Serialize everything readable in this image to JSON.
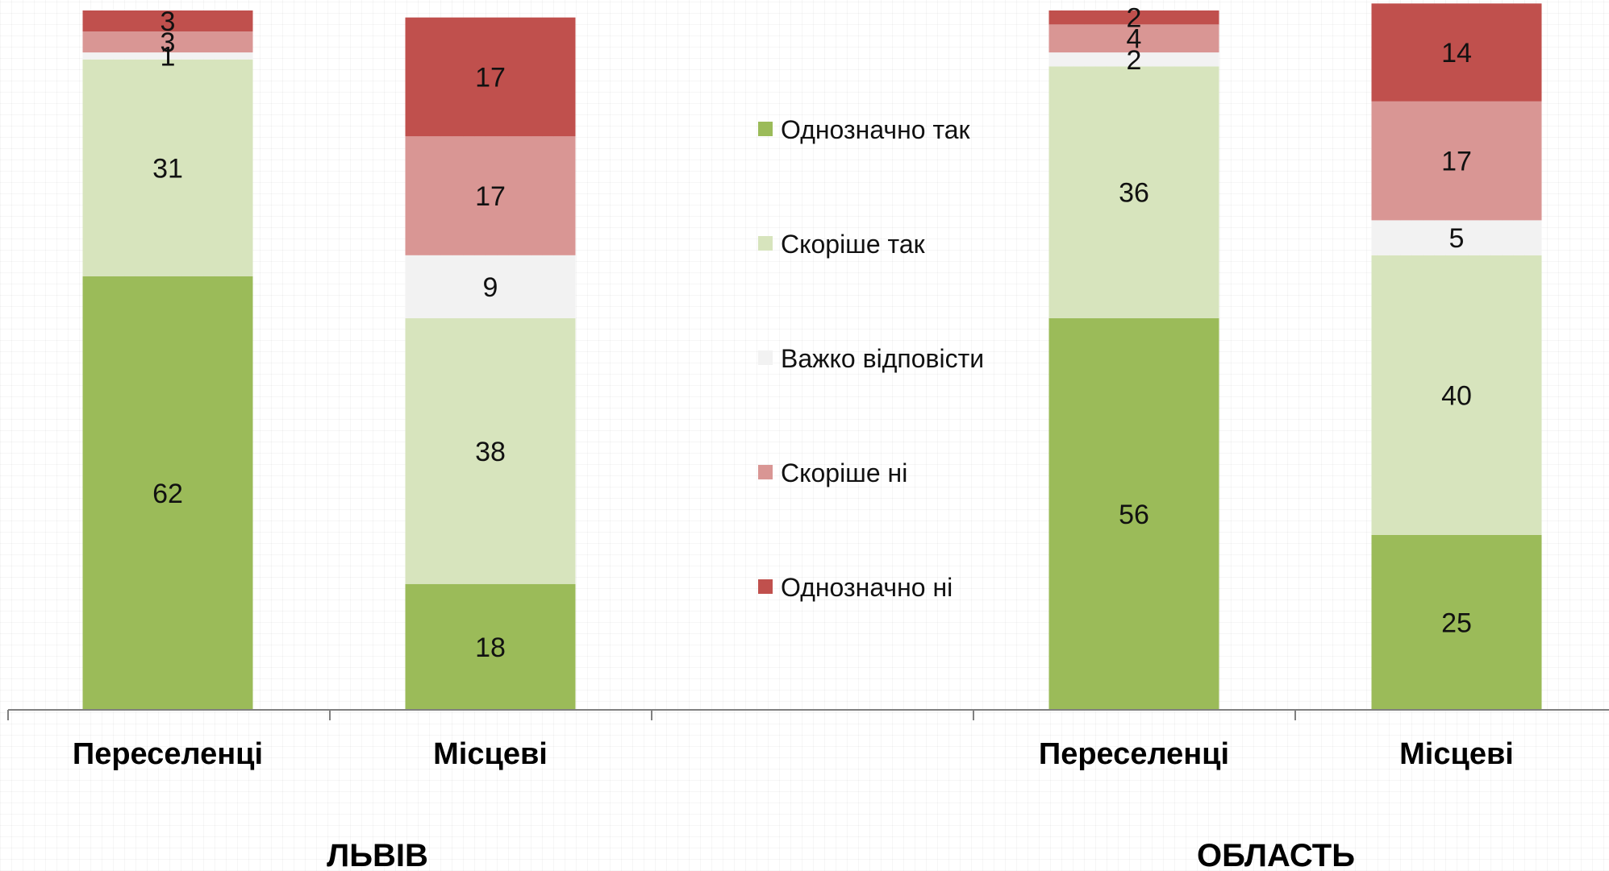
{
  "chart_data": {
    "type": "bar",
    "stacked": true,
    "groups": [
      {
        "label": "ЛЬВІВ",
        "categories": [
          "Переселенці",
          "Місцеві"
        ]
      },
      {
        "label": "ОБЛАСТЬ",
        "categories": [
          "Переселенці",
          "Місцеві"
        ]
      }
    ],
    "categories": [
      "Переселенці",
      "Місцеві",
      "Переселенці",
      "Місцеві"
    ],
    "series": [
      {
        "name": "Однозначно так",
        "color": "#9bbb59",
        "values": [
          62,
          18,
          56,
          25
        ]
      },
      {
        "name": "Скоріше так",
        "color": "#d7e4bd",
        "values": [
          31,
          38,
          36,
          40
        ]
      },
      {
        "name": "Важко відповісти",
        "color": "#f2f2f2",
        "values": [
          1,
          9,
          2,
          5
        ]
      },
      {
        "name": "Скоріше ні",
        "color": "#d99694",
        "values": [
          3,
          17,
          4,
          17
        ]
      },
      {
        "name": "Однозначно ні",
        "color": "#c0504d",
        "values": [
          3,
          17,
          2,
          14
        ]
      }
    ],
    "ylim": [
      0,
      100
    ],
    "grid": false,
    "legend_position": "center"
  }
}
